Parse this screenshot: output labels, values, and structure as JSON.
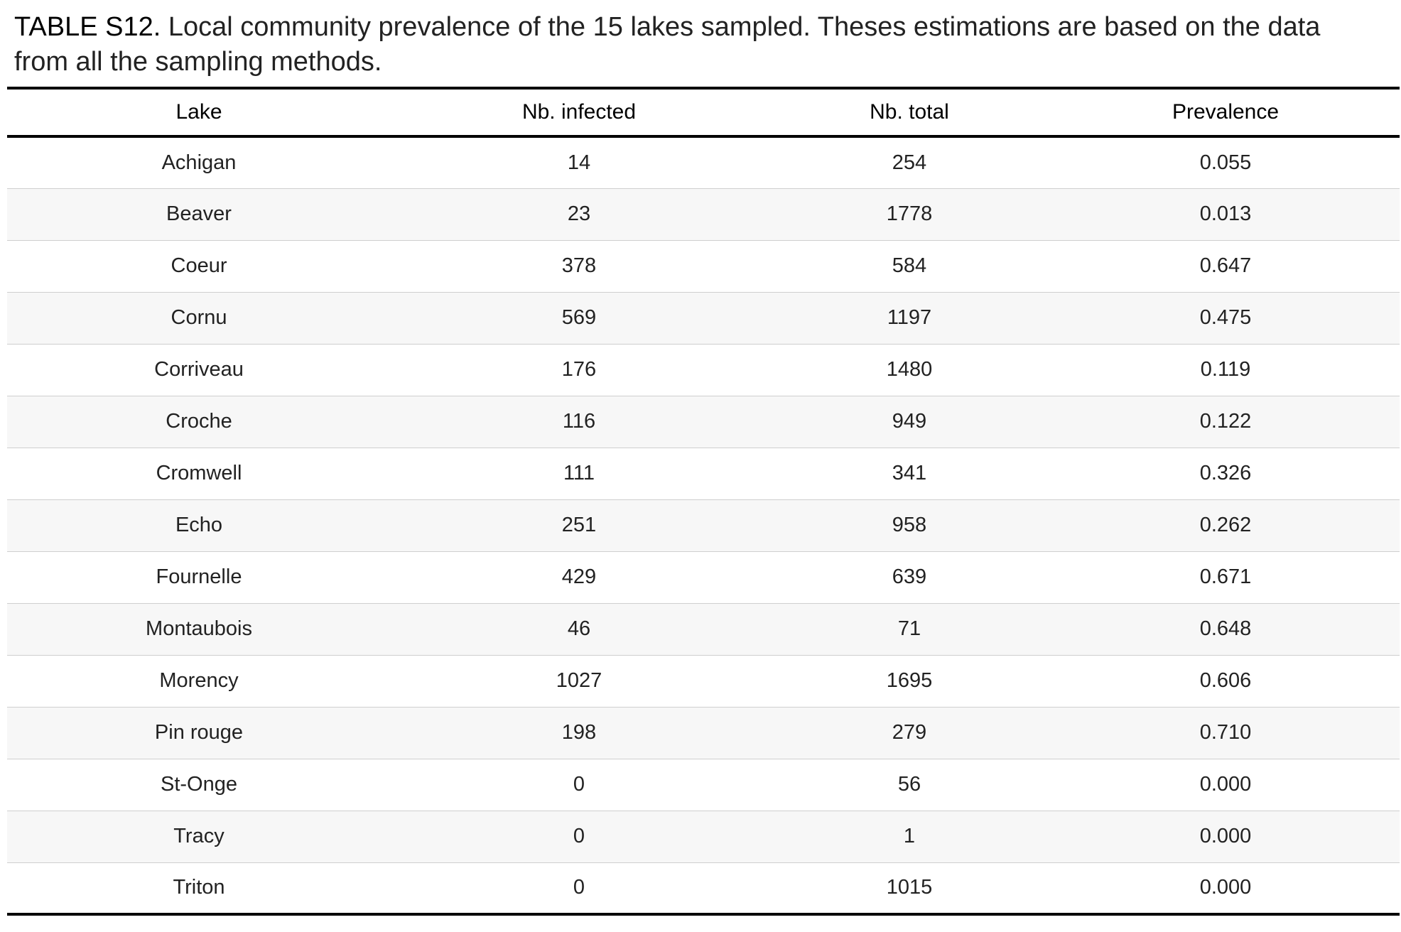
{
  "caption": {
    "label": "TABLE S12.",
    "text": " Local community prevalence of the 15 lakes sampled. Theses estimations are based on the data from all the sampling methods."
  },
  "table": {
    "headers": [
      "Lake",
      "Nb. infected",
      "Nb. total",
      "Prevalence"
    ],
    "rows": [
      [
        "Achigan",
        "14",
        "254",
        "0.055"
      ],
      [
        "Beaver",
        "23",
        "1778",
        "0.013"
      ],
      [
        "Coeur",
        "378",
        "584",
        "0.647"
      ],
      [
        "Cornu",
        "569",
        "1197",
        "0.475"
      ],
      [
        "Corriveau",
        "176",
        "1480",
        "0.119"
      ],
      [
        "Croche",
        "116",
        "949",
        "0.122"
      ],
      [
        "Cromwell",
        "111",
        "341",
        "0.326"
      ],
      [
        "Echo",
        "251",
        "958",
        "0.262"
      ],
      [
        "Fournelle",
        "429",
        "639",
        "0.671"
      ],
      [
        "Montaubois",
        "46",
        "71",
        "0.648"
      ],
      [
        "Morency",
        "1027",
        "1695",
        "0.606"
      ],
      [
        "Pin rouge",
        "198",
        "279",
        "0.710"
      ],
      [
        "St-Onge",
        "0",
        "56",
        "0.000"
      ],
      [
        "Tracy",
        "0",
        "1",
        "0.000"
      ],
      [
        "Triton",
        "0",
        "1015",
        "0.000"
      ]
    ]
  }
}
